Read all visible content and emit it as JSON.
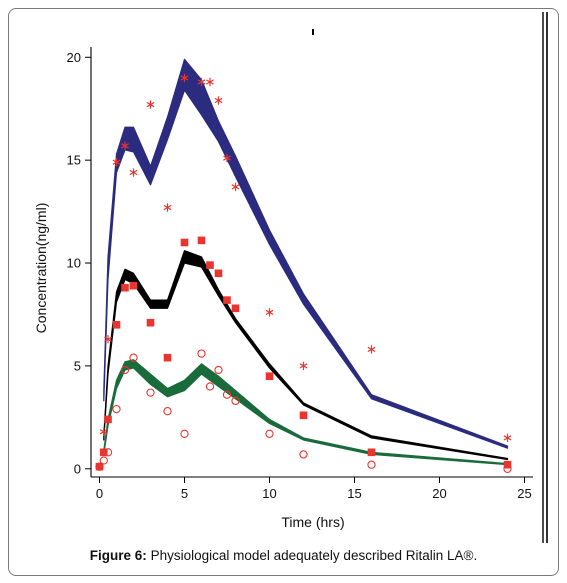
{
  "caption": {
    "label": "Figure 6:",
    "text": " Physiological model adequately described Ritalin LA®."
  },
  "chart_data": {
    "type": "line",
    "title": "",
    "xlabel": "Time (hrs)",
    "ylabel": "Concentration(ng/ml)",
    "xlim": [
      -0.5,
      25.5
    ],
    "ylim": [
      -0.4,
      20.5
    ],
    "xticks": [
      0,
      5,
      10,
      15,
      20,
      25
    ],
    "yticks": [
      0,
      5,
      10,
      15,
      20
    ],
    "grid": false,
    "legend": "none",
    "bands": [
      {
        "color": "#2b2b7f",
        "x": [
          0.25,
          0.5,
          1,
          1.5,
          2,
          3,
          4,
          5,
          6,
          7,
          8,
          10,
          12,
          16,
          24
        ],
        "upper": [
          3.8,
          10.3,
          15.3,
          16.6,
          16.6,
          14.7,
          17.1,
          19.9,
          18.9,
          16.9,
          15.2,
          11.6,
          8.5,
          3.6,
          1.1
        ],
        "lower": [
          3.3,
          9.2,
          14.4,
          15.5,
          15.4,
          13.8,
          16.0,
          18.4,
          17.2,
          15.9,
          14.2,
          10.9,
          8.0,
          3.4,
          1.0
        ]
      },
      {
        "color": "#000000",
        "x": [
          0.25,
          0.5,
          1,
          1.5,
          2,
          3,
          4,
          5,
          6,
          7,
          8,
          10,
          12,
          16,
          24
        ],
        "upper": [
          1.6,
          5.0,
          8.6,
          9.7,
          9.5,
          8.2,
          8.2,
          10.6,
          10.3,
          8.7,
          7.3,
          5.1,
          3.2,
          1.6,
          0.5
        ],
        "lower": [
          1.4,
          4.6,
          8.1,
          9.2,
          9.0,
          7.8,
          7.8,
          10.0,
          9.8,
          8.4,
          7.1,
          4.9,
          3.1,
          1.5,
          0.45
        ]
      },
      {
        "color": "#1a6b3c",
        "x": [
          0.25,
          0.5,
          1,
          1.5,
          2,
          3,
          4,
          5,
          6,
          7,
          8,
          10,
          12,
          16,
          24
        ],
        "upper": [
          0.9,
          2.4,
          4.3,
          5.2,
          5.3,
          4.6,
          3.9,
          4.3,
          5.1,
          4.5,
          3.8,
          2.4,
          1.5,
          0.8,
          0.25
        ],
        "lower": [
          0.7,
          2.1,
          3.9,
          4.8,
          4.9,
          4.1,
          3.5,
          3.8,
          4.6,
          4.0,
          3.4,
          2.2,
          1.4,
          0.7,
          0.2
        ]
      }
    ],
    "scatter": [
      {
        "marker": "asterisk",
        "color": "#e8352f",
        "x": [
          0.25,
          0.5,
          1,
          1.5,
          2,
          3,
          4,
          5,
          6,
          6.5,
          7,
          7.5,
          8,
          10,
          12,
          16,
          24
        ],
        "y": [
          1.8,
          6.3,
          14.9,
          15.7,
          14.4,
          17.7,
          12.7,
          19.0,
          18.8,
          18.8,
          17.9,
          15.1,
          13.7,
          7.6,
          5.0,
          5.8,
          1.5
        ]
      },
      {
        "marker": "square",
        "color": "#e8352f",
        "x": [
          0,
          0.25,
          0.5,
          1,
          1.5,
          2,
          3,
          4,
          5,
          6,
          6.5,
          7,
          7.5,
          8,
          10,
          12,
          16,
          24
        ],
        "y": [
          0.1,
          0.8,
          2.4,
          7.0,
          8.8,
          8.9,
          7.1,
          5.4,
          11.0,
          11.1,
          9.9,
          9.5,
          8.2,
          7.8,
          4.5,
          2.6,
          0.8,
          0.2
        ]
      },
      {
        "marker": "circle",
        "color": "#e8352f",
        "x": [
          0,
          0.25,
          0.5,
          1,
          1.5,
          2,
          3,
          4,
          5,
          6,
          6.5,
          7,
          7.5,
          8,
          10,
          12,
          16,
          24
        ],
        "y": [
          0.1,
          0.4,
          0.8,
          2.9,
          4.8,
          5.4,
          3.7,
          2.8,
          1.7,
          5.6,
          4.0,
          4.8,
          3.6,
          3.3,
          1.7,
          0.7,
          0.2,
          0.0
        ]
      }
    ]
  }
}
